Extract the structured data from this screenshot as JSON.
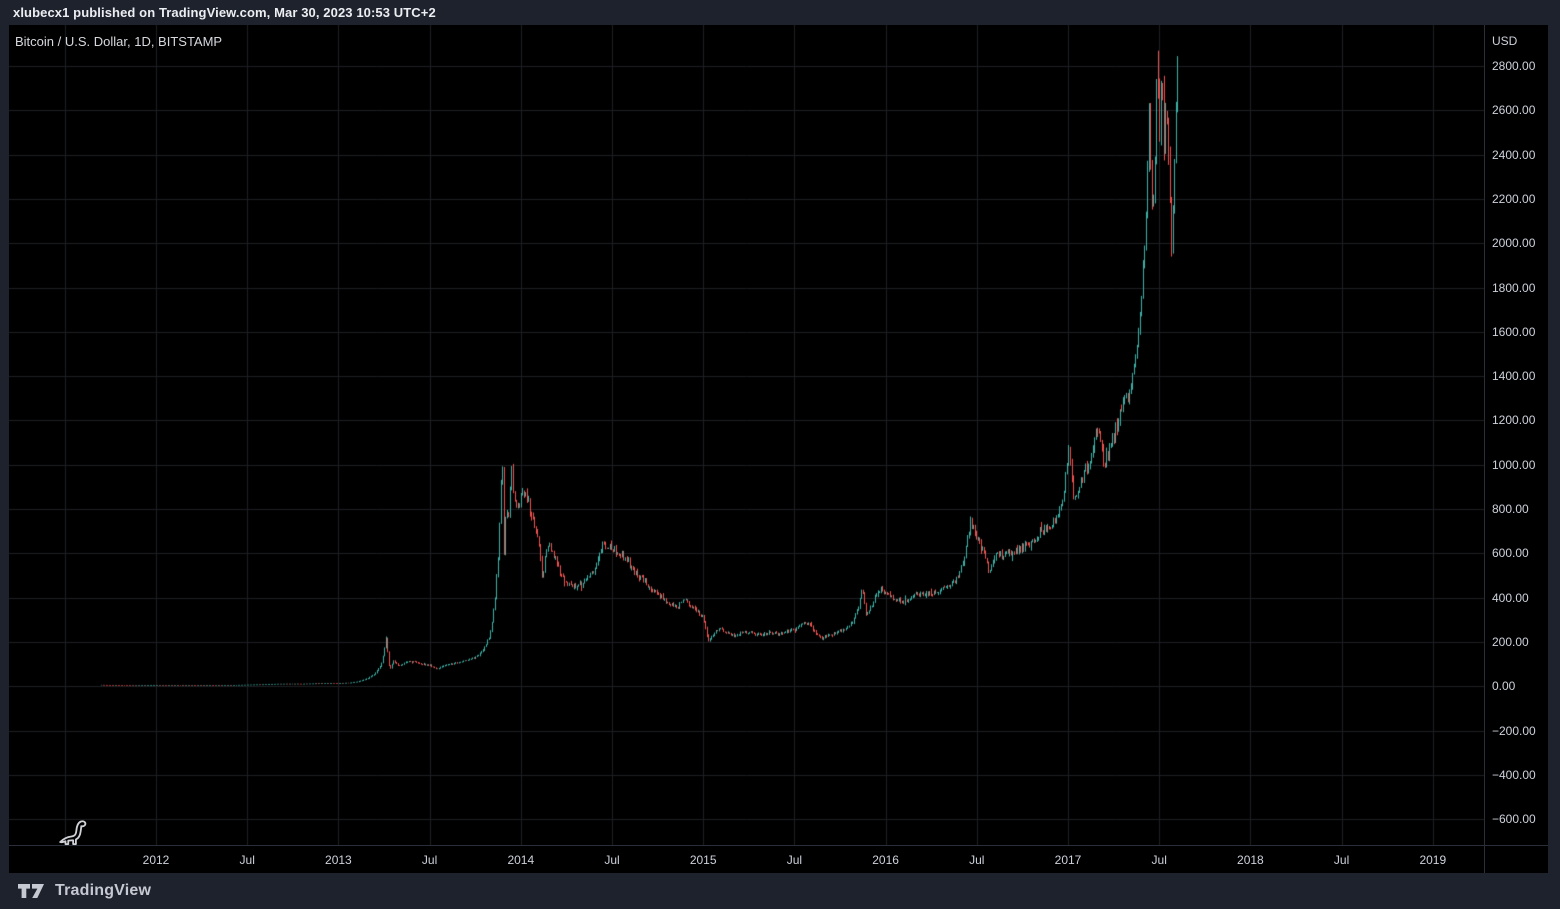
{
  "publish_bar": {
    "text": "xlubecx1 published on TradingView.com, Mar 30, 2023 10:53 UTC+2"
  },
  "legend": {
    "symbol_title": "Bitcoin / U.S. Dollar, 1D, BITSTAMP"
  },
  "footer": {
    "brand": "TradingView"
  },
  "colors": {
    "frame_bg": "#1e222d",
    "pane_bg": "#000000",
    "grid": "#1c1f24",
    "separator": "#2a2e39",
    "up": "#3cb3a8",
    "down": "#ef5350",
    "axis_text": "#cdd1db",
    "drawing_stroke": "#d0d2d8"
  },
  "chart_data": {
    "type": "candlestick",
    "title": "Bitcoin / U.S. Dollar, 1D, BITSTAMP",
    "symbol": "Bitcoin / U.S. Dollar",
    "interval": "1D",
    "exchange": "BITSTAMP",
    "currency": "USD",
    "grid": true,
    "y_axis": {
      "currency_label": "USD",
      "tick_step": 200,
      "visible_range": [
        -717,
        2985
      ],
      "ticks": [
        {
          "label": "2800.00",
          "value": 2800
        },
        {
          "label": "2600.00",
          "value": 2600
        },
        {
          "label": "2400.00",
          "value": 2400
        },
        {
          "label": "2200.00",
          "value": 2200
        },
        {
          "label": "2000.00",
          "value": 2000
        },
        {
          "label": "1800.00",
          "value": 1800
        },
        {
          "label": "1600.00",
          "value": 1600
        },
        {
          "label": "1400.00",
          "value": 1400
        },
        {
          "label": "1200.00",
          "value": 1200
        },
        {
          "label": "1000.00",
          "value": 1000
        },
        {
          "label": "800.00",
          "value": 800
        },
        {
          "label": "600.00",
          "value": 600
        },
        {
          "label": "400.00",
          "value": 400
        },
        {
          "label": "200.00",
          "value": 200
        },
        {
          "label": "0.00",
          "value": 0
        },
        {
          "label": "−200.00",
          "value": -200
        },
        {
          "label": "−400.00",
          "value": -400
        },
        {
          "label": "−600.00",
          "value": -600
        }
      ]
    },
    "x_axis": {
      "visible_range_years": [
        2011.19,
        2019.6
      ],
      "ticks": [
        {
          "label": "2012",
          "year": 2012.0
        },
        {
          "label": "Jul",
          "year": 2012.5
        },
        {
          "label": "2013",
          "year": 2013.0
        },
        {
          "label": "Jul",
          "year": 2013.5
        },
        {
          "label": "2014",
          "year": 2014.0
        },
        {
          "label": "Jul",
          "year": 2014.5
        },
        {
          "label": "2015",
          "year": 2015.0
        },
        {
          "label": "Jul",
          "year": 2015.5
        },
        {
          "label": "2016",
          "year": 2016.0
        },
        {
          "label": "Jul",
          "year": 2016.5
        },
        {
          "label": "2017",
          "year": 2017.0
        },
        {
          "label": "Jul",
          "year": 2017.5
        },
        {
          "label": "2018",
          "year": 2018.0
        },
        {
          "label": "Jul",
          "year": 2018.5
        },
        {
          "label": "2019",
          "year": 2019.0
        }
      ]
    },
    "series_range": {
      "start_year": 2011.7,
      "end_year": 2017.6,
      "candle_count": 711
    },
    "price_keypoints": [
      [
        2011.7,
        6
      ],
      [
        2011.78,
        4.6
      ],
      [
        2011.88,
        3.2
      ],
      [
        2011.95,
        4
      ],
      [
        2012.0,
        5.4
      ],
      [
        2012.1,
        5
      ],
      [
        2012.2,
        4.9
      ],
      [
        2012.3,
        5.1
      ],
      [
        2012.42,
        5.2
      ],
      [
        2012.5,
        6.6
      ],
      [
        2012.58,
        8
      ],
      [
        2012.66,
        10.5
      ],
      [
        2012.72,
        11
      ],
      [
        2012.8,
        10.8
      ],
      [
        2012.88,
        12.5
      ],
      [
        2012.95,
        13.3
      ],
      [
        2013.0,
        13.5
      ],
      [
        2013.06,
        16
      ],
      [
        2013.1,
        21
      ],
      [
        2013.15,
        33
      ],
      [
        2013.2,
        60
      ],
      [
        2013.235,
        105
      ],
      [
        2013.262,
        235
      ],
      [
        2013.28,
        75
      ],
      [
        2013.3,
        120
      ],
      [
        2013.33,
        92
      ],
      [
        2013.37,
        112
      ],
      [
        2013.42,
        110
      ],
      [
        2013.46,
        100
      ],
      [
        2013.5,
        95
      ],
      [
        2013.54,
        78
      ],
      [
        2013.58,
        96
      ],
      [
        2013.64,
        106
      ],
      [
        2013.7,
        118
      ],
      [
        2013.75,
        132
      ],
      [
        2013.79,
        165
      ],
      [
        2013.83,
        235
      ],
      [
        2013.86,
        420
      ],
      [
        2013.882,
        720
      ],
      [
        2013.897,
        1120
      ],
      [
        2013.906,
        580
      ],
      [
        2013.917,
        810
      ],
      [
        2013.93,
        755
      ],
      [
        2013.945,
        985
      ],
      [
        2013.96,
        870
      ],
      [
        2013.975,
        795
      ],
      [
        2013.99,
        835
      ],
      [
        2014.01,
        880
      ],
      [
        2014.04,
        830
      ],
      [
        2014.07,
        750
      ],
      [
        2014.1,
        640
      ],
      [
        2014.118,
        480
      ],
      [
        2014.135,
        625
      ],
      [
        2014.16,
        630
      ],
      [
        2014.19,
        570
      ],
      [
        2014.22,
        500
      ],
      [
        2014.26,
        465
      ],
      [
        2014.3,
        455
      ],
      [
        2014.35,
        470
      ],
      [
        2014.4,
        520
      ],
      [
        2014.45,
        645
      ],
      [
        2014.5,
        625
      ],
      [
        2014.56,
        590
      ],
      [
        2014.62,
        520
      ],
      [
        2014.68,
        475
      ],
      [
        2014.74,
        420
      ],
      [
        2014.8,
        385
      ],
      [
        2014.85,
        355
      ],
      [
        2014.9,
        390
      ],
      [
        2014.95,
        350
      ],
      [
        2015.0,
        310
      ],
      [
        2015.025,
        205
      ],
      [
        2015.05,
        235
      ],
      [
        2015.09,
        258
      ],
      [
        2015.13,
        240
      ],
      [
        2015.17,
        228
      ],
      [
        2015.22,
        248
      ],
      [
        2015.27,
        238
      ],
      [
        2015.32,
        232
      ],
      [
        2015.37,
        244
      ],
      [
        2015.42,
        236
      ],
      [
        2015.47,
        250
      ],
      [
        2015.52,
        268
      ],
      [
        2015.555,
        292
      ],
      [
        2015.6,
        262
      ],
      [
        2015.645,
        216
      ],
      [
        2015.68,
        232
      ],
      [
        2015.73,
        240
      ],
      [
        2015.78,
        262
      ],
      [
        2015.82,
        300
      ],
      [
        2015.85,
        362
      ],
      [
        2015.868,
        448
      ],
      [
        2015.89,
        330
      ],
      [
        2015.92,
        358
      ],
      [
        2015.95,
        415
      ],
      [
        2015.975,
        438
      ],
      [
        2016.0,
        428
      ],
      [
        2016.05,
        392
      ],
      [
        2016.1,
        378
      ],
      [
        2016.16,
        416
      ],
      [
        2016.22,
        418
      ],
      [
        2016.28,
        428
      ],
      [
        2016.34,
        452
      ],
      [
        2016.4,
        490
      ],
      [
        2016.44,
        640
      ],
      [
        2016.465,
        745
      ],
      [
        2016.5,
        672
      ],
      [
        2016.535,
        600
      ],
      [
        2016.565,
        520
      ],
      [
        2016.6,
        585
      ],
      [
        2016.66,
        605
      ],
      [
        2016.72,
        612
      ],
      [
        2016.78,
        640
      ],
      [
        2016.84,
        690
      ],
      [
        2016.9,
        730
      ],
      [
        2016.95,
        775
      ],
      [
        2016.985,
        930
      ],
      [
        2017.005,
        1085
      ],
      [
        2017.03,
        820
      ],
      [
        2017.06,
        900
      ],
      [
        2017.095,
        985
      ],
      [
        2017.13,
        1035
      ],
      [
        2017.165,
        1195
      ],
      [
        2017.195,
        1005
      ],
      [
        2017.23,
        1080
      ],
      [
        2017.265,
        1175
      ],
      [
        2017.3,
        1255
      ],
      [
        2017.335,
        1320
      ],
      [
        2017.37,
        1480
      ],
      [
        2017.4,
        1760
      ],
      [
        2017.425,
        2080
      ],
      [
        2017.443,
        2580
      ],
      [
        2017.458,
        2120
      ],
      [
        2017.472,
        2320
      ],
      [
        2017.487,
        2780
      ],
      [
        2017.5,
        2500
      ],
      [
        2017.512,
        2880
      ],
      [
        2017.525,
        2450
      ],
      [
        2017.54,
        2620
      ],
      [
        2017.553,
        2320
      ],
      [
        2017.567,
        1980
      ],
      [
        2017.578,
        2250
      ],
      [
        2017.59,
        2620
      ],
      [
        2017.6,
        2840
      ]
    ]
  }
}
